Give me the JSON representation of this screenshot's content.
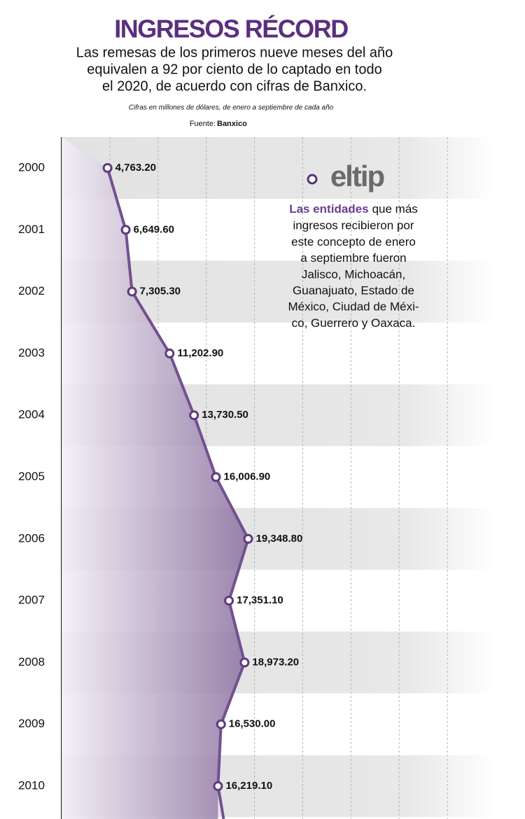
{
  "chart_data": {
    "type": "line",
    "orientation": "horizontal",
    "title": "INGRESOS RÉCORD",
    "subtitle_lines": [
      "Las remesas de los primeros nueve meses del año",
      "equivalen a 92 por ciento de lo captado en todo",
      "el 2020, de acuerdo con cifras de Banxico."
    ],
    "note": "Cifras en millones de dólares, de enero a septiembre de cada año",
    "source_label": "Fuente:",
    "source": "Banxico",
    "categories": [
      "2000",
      "2001",
      "2002",
      "2003",
      "2004",
      "2005",
      "2006",
      "2007",
      "2008",
      "2009",
      "2010"
    ],
    "values": [
      4763.2,
      6649.6,
      7305.3,
      11202.9,
      13730.5,
      16006.9,
      19348.8,
      17351.1,
      18973.2,
      16530.0,
      16219.1
    ],
    "value_labels": [
      "4,763.20",
      "6,649.60",
      "7,305.30",
      "11,202.90",
      "13,730.50",
      "16,006.90",
      "19,348.80",
      "17,351.10",
      "18,973.20",
      "16,530.00",
      "16,219.10"
    ],
    "color": "#73508f",
    "xlim": [
      0,
      45000
    ],
    "xticks": [
      5000,
      10000,
      15000,
      20000,
      25000,
      30000,
      35000,
      40000
    ],
    "grid": true,
    "annotation": {
      "logo": "eltip",
      "highlight": "Las entidades",
      "lines": [
        "que más",
        "ingresos recibieron por",
        "este concepto de enero",
        "a septiembre fueron",
        "Jalisco, Michoacán,",
        "Guanajuato, Estado de",
        "México, Ciudad de Méxi-",
        "co, Guerrero y Oaxaca."
      ]
    }
  }
}
